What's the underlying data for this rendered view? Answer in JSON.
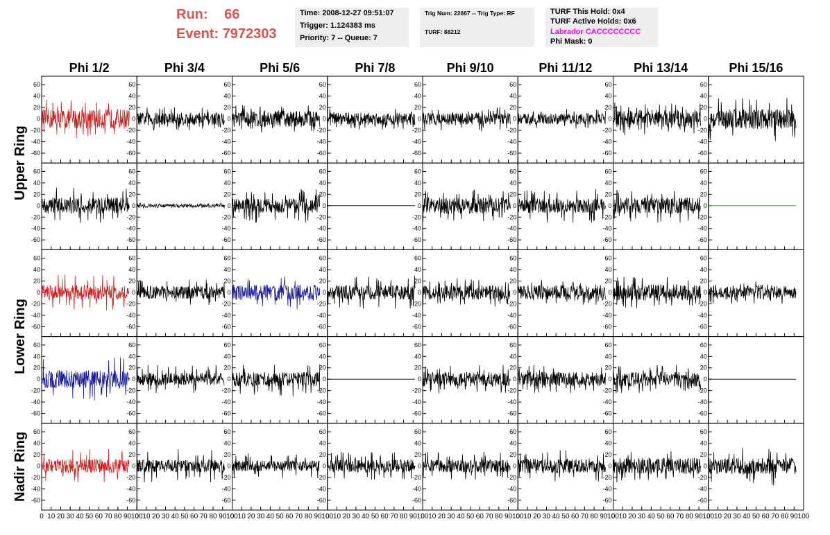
{
  "header": {
    "run_label": "Run:",
    "run_value": "66",
    "event_label": "Event:",
    "event_value": "7972303"
  },
  "info_time": {
    "time": "Time: 2008-12-27 09:51:07",
    "trigger": "Trigger: 1.124383 ms",
    "priority": "Priority: 7 -- Queue: 7"
  },
  "info_trig": {
    "trig": "Trig Num: 22667 -- Trig Type: RF",
    "turf": "TURF: 88212"
  },
  "info_turf": {
    "this_hold": "TURF This Hold: 0x4",
    "active_holds": "TURF Active Holds: 0x6",
    "labrador": "Labrador CACCCCCCCC",
    "phi_mask": "Phi Mask: 0"
  },
  "colors": {
    "red": "#cc2222",
    "blue": "#1a1aa0",
    "black": "#000000",
    "green": "#2e8b2e",
    "header": "#d9534f",
    "magenta": "#ff00ff"
  },
  "chart_data": {
    "type": "line",
    "columns": [
      "Phi 1/2",
      "Phi 3/4",
      "Phi 5/6",
      "Phi 7/8",
      "Phi 9/10",
      "Phi 11/12",
      "Phi 13/14",
      "Phi 15/16"
    ],
    "ring_labels": [
      {
        "label": "Upper Ring",
        "rows": [
          0,
          1
        ]
      },
      {
        "label": "Lower Ring",
        "rows": [
          2,
          3
        ]
      },
      {
        "label": "Nadir Ring",
        "rows": [
          4
        ]
      }
    ],
    "ylim": [
      -70,
      70
    ],
    "y_ticks": [
      -60,
      -40,
      -20,
      0,
      20,
      40,
      60
    ],
    "xlim": [
      0,
      100
    ],
    "x_tick_values": [
      0,
      10,
      20,
      30,
      40,
      50,
      60,
      70,
      80,
      90,
      100
    ],
    "x_tick_labels": [
      "0",
      "10",
      "20",
      "30",
      "40",
      "50",
      "60",
      "70",
      "80",
      "90",
      "100"
    ],
    "samples": 260,
    "x_end": 92,
    "waveforms": [
      [
        {
          "color": "red",
          "amp": 11,
          "spike": 35
        },
        {
          "color": "black",
          "amp": 7,
          "spike": 22
        },
        {
          "color": "black",
          "amp": 9,
          "spike": 25
        },
        {
          "color": "black",
          "amp": 7,
          "spike": 20
        },
        {
          "color": "black",
          "amp": 7,
          "spike": 22
        },
        {
          "color": "black",
          "amp": 6,
          "spike": 18
        },
        {
          "color": "black",
          "amp": 10,
          "spike": 30
        },
        {
          "color": "black",
          "amp": 11,
          "spike": 40
        }
      ],
      [
        {
          "color": "black",
          "amp": 9,
          "spike": 32
        },
        {
          "color": "black",
          "amp": 2,
          "spike": 5
        },
        {
          "color": "black",
          "amp": 8,
          "spike": 30
        },
        {
          "color": "black",
          "amp": 0,
          "spike": 0
        },
        {
          "color": "black",
          "amp": 9,
          "spike": 28
        },
        {
          "color": "black",
          "amp": 8,
          "spike": 30
        },
        {
          "color": "black",
          "amp": 9,
          "spike": 30
        },
        {
          "color": "green",
          "amp": 0,
          "spike": 0
        }
      ],
      [
        {
          "color": "red",
          "amp": 8,
          "spike": 32
        },
        {
          "color": "black",
          "amp": 7,
          "spike": 25
        },
        {
          "color": "blue",
          "amp": 9,
          "spike": 30
        },
        {
          "color": "black",
          "amp": 8,
          "spike": 30
        },
        {
          "color": "black",
          "amp": 8,
          "spike": 25
        },
        {
          "color": "black",
          "amp": 8,
          "spike": 22
        },
        {
          "color": "black",
          "amp": 9,
          "spike": 28
        },
        {
          "color": "black",
          "amp": 7,
          "spike": 20
        }
      ],
      [
        {
          "color": "blue",
          "amp": 10,
          "spike": 40
        },
        {
          "color": "black",
          "amp": 7,
          "spike": 25
        },
        {
          "color": "black",
          "amp": 8,
          "spike": 30
        },
        {
          "color": "black",
          "amp": 0,
          "spike": 0
        },
        {
          "color": "black",
          "amp": 8,
          "spike": 25
        },
        {
          "color": "black",
          "amp": 8,
          "spike": 25
        },
        {
          "color": "black",
          "amp": 8,
          "spike": 25
        },
        {
          "color": "black",
          "amp": 0,
          "spike": 0
        }
      ],
      [
        {
          "color": "red",
          "amp": 8,
          "spike": 30
        },
        {
          "color": "black",
          "amp": 7,
          "spike": 30
        },
        {
          "color": "black",
          "amp": 6,
          "spike": 22
        },
        {
          "color": "black",
          "amp": 7,
          "spike": 25
        },
        {
          "color": "black",
          "amp": 7,
          "spike": 25
        },
        {
          "color": "black",
          "amp": 8,
          "spike": 28
        },
        {
          "color": "black",
          "amp": 9,
          "spike": 30
        },
        {
          "color": "black",
          "amp": 9,
          "spike": 35
        }
      ]
    ]
  }
}
